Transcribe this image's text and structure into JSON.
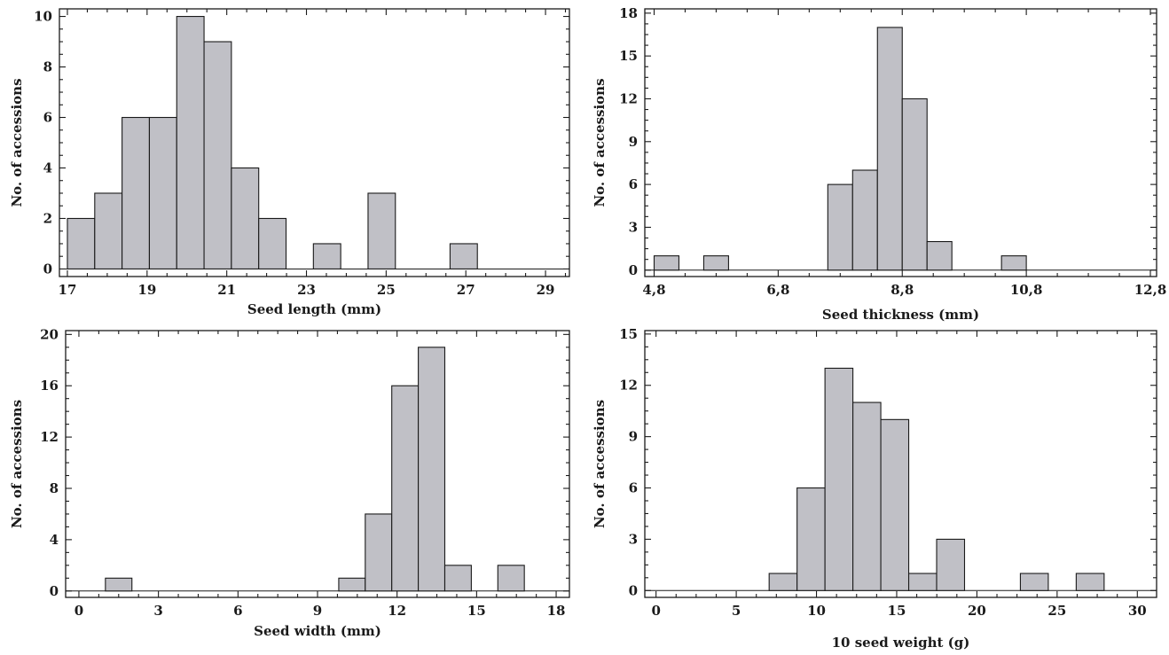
{
  "chart_data": [
    {
      "type": "bar",
      "histogram": true,
      "xlabel": "Seed length  (mm)",
      "ylabel": "No. of accessions",
      "xlim": [
        16.8,
        29.6
      ],
      "ylim": [
        -0.3,
        10.3
      ],
      "xticks": [
        17,
        19,
        21,
        23,
        25,
        27,
        29
      ],
      "xtick_labels": [
        "17",
        "19",
        "21",
        "23",
        "25",
        "27",
        "29"
      ],
      "yticks": [
        0,
        2,
        4,
        6,
        8,
        10
      ],
      "ytick_labels": [
        "0",
        "2",
        "4",
        "6",
        "8",
        "10"
      ],
      "bin_width": 0.686,
      "bin_starts": [
        17.0,
        17.686,
        18.372,
        19.058,
        19.744,
        20.43,
        21.116,
        21.802,
        23.174,
        24.546,
        26.604
      ],
      "values": [
        2,
        3,
        6,
        6,
        10,
        9,
        4,
        2,
        1,
        3,
        1
      ],
      "bar_color": "#c0c0c6"
    },
    {
      "type": "bar",
      "histogram": true,
      "xlabel": "Seed thickness (mm)",
      "ylabel": "No. of accessions",
      "xlim": [
        4.65,
        12.9
      ],
      "ylim": [
        -0.45,
        18.3
      ],
      "xticks": [
        4.8,
        6.8,
        8.8,
        10.8,
        12.8
      ],
      "xtick_labels": [
        "4,8",
        "6,8",
        "8,8",
        "10,8",
        "12,8"
      ],
      "yticks": [
        0,
        3,
        6,
        9,
        12,
        15,
        18
      ],
      "ytick_labels": [
        "0",
        "3",
        "6",
        "9",
        "12",
        "15",
        "18"
      ],
      "bin_width": 0.4,
      "bin_starts": [
        4.8,
        5.6,
        7.6,
        8.0,
        8.4,
        8.8,
        9.2,
        10.4
      ],
      "values": [
        1,
        1,
        6,
        7,
        17,
        12,
        2,
        1
      ],
      "bar_color": "#c0c0c6"
    },
    {
      "type": "bar",
      "histogram": true,
      "xlabel": "Seed width (mm)",
      "ylabel": "No. of accessions",
      "xlim": [
        -0.5,
        18.5
      ],
      "ylim": [
        -0.5,
        20.3
      ],
      "xticks": [
        0,
        3,
        6,
        9,
        12,
        15,
        18
      ],
      "xtick_labels": [
        "0",
        "3",
        "6",
        "9",
        "12",
        "15",
        "18"
      ],
      "yticks": [
        0,
        4,
        8,
        12,
        16,
        20
      ],
      "ytick_labels": [
        "0",
        "4",
        "8",
        "12",
        "16",
        "20"
      ],
      "bin_width": 1.0,
      "bin_starts": [
        1.0,
        9.8,
        10.8,
        11.8,
        12.8,
        13.8,
        15.8
      ],
      "values": [
        1,
        1,
        6,
        16,
        19,
        2,
        2
      ],
      "bar_color": "#c0c0c6"
    },
    {
      "type": "bar",
      "histogram": true,
      "xlabel": "10 seed weight (g)",
      "ylabel": "No. of accessions",
      "xlim": [
        -0.7,
        31.2
      ],
      "ylim": [
        -0.4,
        15.2
      ],
      "xticks": [
        0,
        5,
        10,
        15,
        20,
        25,
        30
      ],
      "xtick_labels": [
        "0",
        "5",
        "10",
        "15",
        "20",
        "25",
        "30"
      ],
      "yticks": [
        0,
        3,
        6,
        9,
        12,
        15
      ],
      "ytick_labels": [
        "0",
        "3",
        "6",
        "9",
        "12",
        "15"
      ],
      "bin_width": 1.74,
      "bin_starts": [
        7.05,
        8.79,
        10.53,
        12.27,
        14.01,
        15.75,
        17.49,
        22.71,
        26.19
      ],
      "values": [
        1,
        6,
        13,
        11,
        10,
        1,
        3,
        1,
        1
      ],
      "bar_color": "#c0c0c6"
    }
  ]
}
